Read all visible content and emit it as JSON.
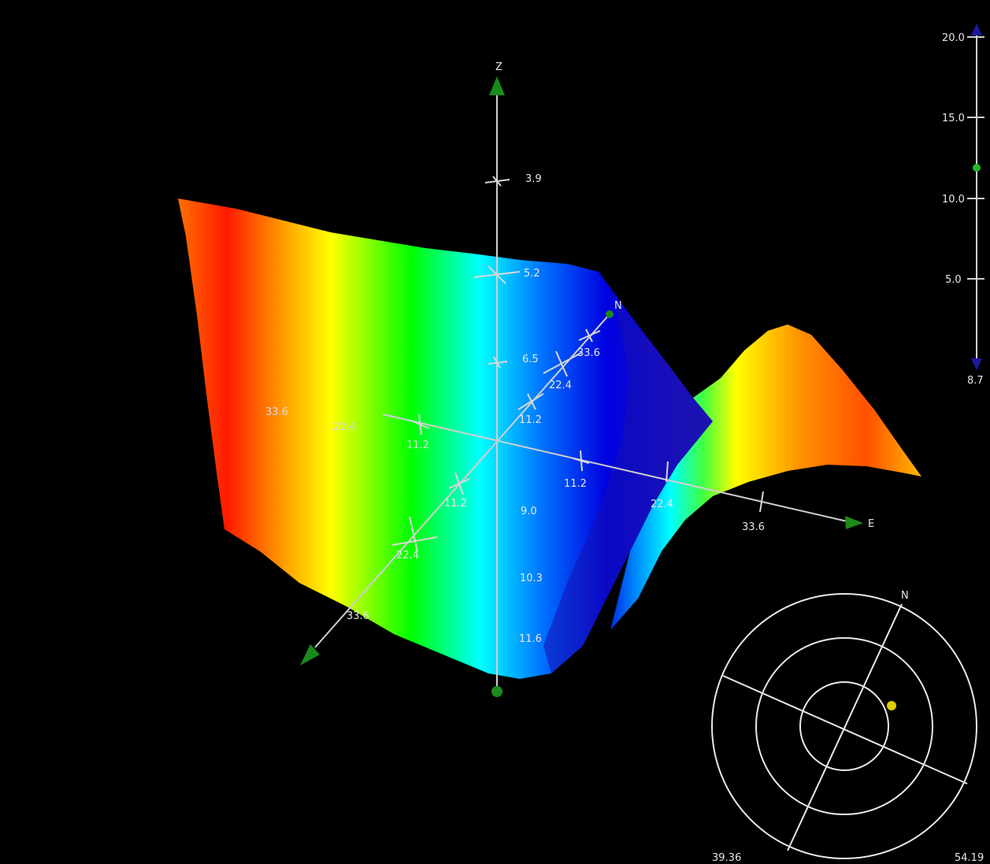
{
  "scene": {
    "surface": {
      "name": "terrain-surface",
      "colormap": [
        "#ff0000",
        "#ffa000",
        "#ffff00",
        "#00ff00",
        "#00ffff",
        "#0050ff",
        "#0000dc"
      ]
    },
    "axes": {
      "z": {
        "label": "Z",
        "ticks": [
          "3.9",
          "5.2",
          "6.5",
          "9.0",
          "10.3",
          "11.6"
        ]
      },
      "north": {
        "label": "N",
        "ticks": [
          "11.2",
          "22.4",
          "33.6"
        ],
        "neg_ticks": [
          "11.2",
          "22.4",
          "33.6"
        ]
      },
      "east": {
        "label": "E",
        "ticks": [
          "11.2",
          "22.4",
          "33.6"
        ],
        "neg_ticks": [
          "11.2",
          "22.4",
          "33.6"
        ]
      }
    },
    "handle_color": "#1a8a1a"
  },
  "scale_bar": {
    "ticks": [
      "20.0",
      "15.0",
      "10.0",
      "5.0"
    ],
    "bottom_value": "8.7",
    "level_fraction": 0.6,
    "arrow_color": "#1a1aa0",
    "marker_color": "#22bb22"
  },
  "compass": {
    "north_label": "N",
    "left_value": "39.36",
    "right_value": "54.19",
    "marker_color": "#ddcc00"
  }
}
